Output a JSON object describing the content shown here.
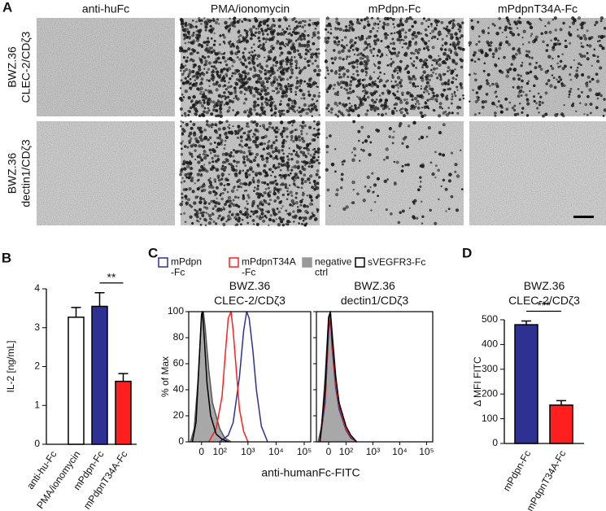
{
  "panel_a": {
    "label": "A",
    "columns": [
      "anti-huFc",
      "PMA/ionomycin",
      "mPdpn-Fc",
      "mPdpnT34A-Fc"
    ],
    "rows": [
      "BWZ.36\nCLEC-2/CDζ3",
      "BWZ.36\ndectin1/CDζ3"
    ]
  },
  "chart_data": [
    {
      "label": "B",
      "type": "bar",
      "categories": [
        "anti-hu-Fc",
        "PMA/ionomycin",
        "mPdpn-Fc",
        "mPdpnT34A-Fc"
      ],
      "values": [
        0,
        3.27,
        3.55,
        1.62
      ],
      "errors": [
        null,
        0.25,
        0.35,
        0.2
      ],
      "colors": [
        "#ffffff",
        "#ffffff",
        "#2e3192",
        "#ff1f1f"
      ],
      "ylabel": "IL-2 [ng/mL]",
      "ylim": [
        0,
        4
      ],
      "yticks": [
        0,
        1,
        2,
        3,
        4
      ],
      "significance": {
        "text": "**",
        "between": [
          2,
          3
        ]
      }
    },
    {
      "label": "C",
      "type": "histogram-overlay",
      "subplots": [
        "BWZ.36\nCLEC-2/CDζ3",
        "BWZ.36\ndectin1/CDζ3"
      ],
      "series": [
        {
          "name": "mPdpn\n-Fc",
          "color": "#2e3192",
          "panels": [
            {
              "x": [
                100,
                200,
                300,
                500,
                700,
                900,
                1100,
                1500,
                2000,
                3000,
                5000
              ],
              "values": [
                0,
                5,
                15,
                50,
                85,
                100,
                95,
                70,
                40,
                12,
                0
              ]
            },
            {
              "x": [
                -50,
                -20,
                0,
                10,
                20,
                40,
                60,
                100,
                150,
                250
              ],
              "values": [
                0,
                30,
                85,
                95,
                72,
                42,
                25,
                9,
                3,
                0
              ]
            }
          ]
        },
        {
          "name": "mPdpnT34A\n-Fc",
          "color": "#ff1f1f",
          "panels": [
            {
              "x": [
                40,
                80,
                120,
                160,
                200,
                250,
                300,
                400,
                500,
                700,
                1000
              ],
              "values": [
                0,
                10,
                35,
                70,
                95,
                100,
                85,
                50,
                25,
                8,
                0
              ]
            },
            {
              "x": [
                -50,
                -20,
                0,
                10,
                20,
                40,
                60,
                100,
                150,
                250
              ],
              "values": [
                0,
                35,
                90,
                98,
                75,
                45,
                28,
                10,
                4,
                0
              ]
            }
          ]
        },
        {
          "name": "negative\nctrl",
          "color": "#999999",
          "fill": true,
          "panels": [
            {
              "x": [
                -60,
                -40,
                -20,
                0,
                10,
                20,
                40,
                60,
                100,
                150,
                250
              ],
              "values": [
                0,
                10,
                45,
                95,
                100,
                88,
                55,
                30,
                10,
                3,
                0
              ]
            },
            {
              "x": [
                -60,
                -40,
                -20,
                0,
                10,
                20,
                40,
                60,
                100,
                150,
                250
              ],
              "values": [
                0,
                12,
                50,
                96,
                100,
                85,
                52,
                28,
                9,
                3,
                0
              ]
            }
          ]
        },
        {
          "name": "sVEGFR3-Fc",
          "color": "#000000",
          "panels": [
            {
              "x": [
                -50,
                -30,
                -10,
                0,
                5,
                15,
                30,
                50,
                80,
                120,
                200
              ],
              "values": [
                0,
                15,
                70,
                98,
                100,
                80,
                45,
                20,
                6,
                2,
                0
              ]
            },
            {
              "x": [
                -50,
                -20,
                0,
                10,
                20,
                40,
                60,
                100,
                150,
                250
              ],
              "values": [
                0,
                40,
                95,
                100,
                80,
                50,
                30,
                12,
                5,
                0
              ]
            }
          ]
        }
      ],
      "xlabel": "anti-humanFc-FITC",
      "ylabel": "% of Max",
      "xscale": "biexponential",
      "xlim": [
        -70,
        170000
      ],
      "xticks": [
        {
          "value": 0,
          "label": "0"
        },
        {
          "value": 100,
          "label": "10²"
        },
        {
          "value": 1000,
          "label": "10³"
        },
        {
          "value": 10000,
          "label": "10⁴"
        },
        {
          "value": 100000,
          "label": "10⁵"
        }
      ],
      "ylim": [
        0,
        100
      ],
      "yticks": [
        0,
        20,
        40,
        60,
        80,
        100
      ]
    },
    {
      "label": "D",
      "type": "bar",
      "title": "BWZ.36\nCLEC-2/CDζ3",
      "categories": [
        "mPdpn-Fc",
        "mPdpnT34A-Fc"
      ],
      "values": [
        480,
        155
      ],
      "errors": [
        15,
        18
      ],
      "colors": [
        "#2e3192",
        "#ff1f1f"
      ],
      "ylabel": "Δ MFI FITC",
      "ylim": [
        0,
        500
      ],
      "yticks": [
        0,
        100,
        200,
        300,
        400,
        500
      ],
      "significance": {
        "text": "***",
        "between": [
          0,
          1
        ]
      }
    }
  ]
}
